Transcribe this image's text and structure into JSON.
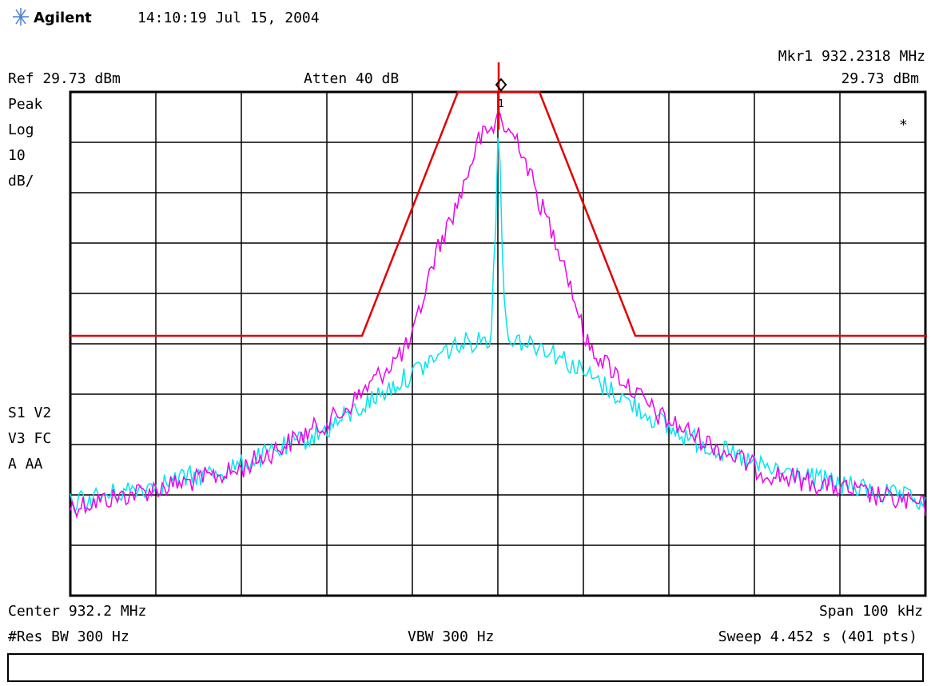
{
  "header": {
    "brand": "Agilent",
    "timestamp": "14:10:19  Jul 15, 2004"
  },
  "top": {
    "marker": "Mkr1  932.2318 MHz",
    "ref": "Ref 29.73 dBm",
    "atten": "Atten 40 dB",
    "marker_level": "29.73 dBm"
  },
  "left": {
    "detector": "Peak",
    "scale": "Log",
    "scale_value": "10",
    "scale_unit": "dB/",
    "status1": "S1  V2",
    "status2": "V3  FC",
    "status3": "A   AA"
  },
  "plot": {
    "star": "*",
    "marker_label": "1"
  },
  "bottom": {
    "center": "Center 932.2 MHz",
    "span": "Span 100 kHz",
    "rbw": "#Res BW 300 Hz",
    "vbw": "VBW 300 Hz",
    "sweep": "Sweep 4.452 s (401 pts)"
  }
}
